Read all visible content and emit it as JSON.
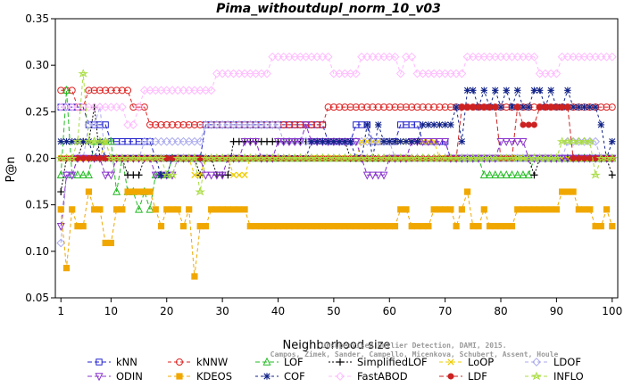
{
  "chart_data": {
    "type": "line",
    "title": "Pima_withoutdupl_norm_10_v03",
    "xlabel": "Neighborhood size",
    "ylabel": "P@n",
    "xlim": [
      0,
      101
    ],
    "ylim": [
      0.05,
      0.35
    ],
    "xticks": [
      1,
      10,
      20,
      30,
      40,
      50,
      60,
      70,
      80,
      90,
      100
    ],
    "xtick_labels": [
      "1",
      "10",
      "20",
      "30",
      "40",
      "50",
      "60",
      "70",
      "80",
      "90",
      "100"
    ],
    "yticks": [
      0.05,
      0.1,
      0.15,
      0.2,
      0.25,
      0.3,
      0.35
    ],
    "ytick_labels": [
      "0.05",
      "0.10",
      "0.15",
      "0.20",
      "0.25",
      "0.30",
      "0.35"
    ],
    "grid": false,
    "legend_position": "bottom",
    "credit": "Campos, Zimek, Sander, Campello, Micenkova, Schubert, Assent, Houle",
    "credit_title": "Unsupervised Outlier Detection, DAMI, 2015.",
    "series": [
      {
        "name": "kNN",
        "color": "#2222cc",
        "marker": "square",
        "keypoints": [
          [
            1,
            0.255
          ],
          [
            5,
            0.255
          ],
          [
            6,
            0.236
          ],
          [
            9,
            0.236
          ],
          [
            10,
            0.218
          ],
          [
            17,
            0.218
          ],
          [
            18,
            0.2
          ],
          [
            26,
            0.2
          ],
          [
            27,
            0.236
          ],
          [
            48,
            0.236
          ],
          [
            49,
            0.218
          ],
          [
            53,
            0.218
          ],
          [
            54,
            0.236
          ],
          [
            56,
            0.236
          ],
          [
            57,
            0.218
          ],
          [
            61,
            0.218
          ],
          [
            62,
            0.236
          ],
          [
            65,
            0.236
          ],
          [
            66,
            0.218
          ],
          [
            70,
            0.218
          ],
          [
            71,
            0.2
          ],
          [
            100,
            0.2
          ]
        ]
      },
      {
        "name": "kNNW",
        "color": "#dd2222",
        "marker": "circle",
        "keypoints": [
          [
            1,
            0.273
          ],
          [
            3,
            0.273
          ],
          [
            4,
            0.255
          ],
          [
            5,
            0.255
          ],
          [
            6,
            0.273
          ],
          [
            13,
            0.273
          ],
          [
            14,
            0.255
          ],
          [
            16,
            0.255
          ],
          [
            17,
            0.236
          ],
          [
            48,
            0.236
          ],
          [
            49,
            0.255
          ],
          [
            100,
            0.255
          ]
        ]
      },
      {
        "name": "LOF",
        "color": "#22bb22",
        "marker": "triangle",
        "keypoints": [
          [
            1,
            0.182
          ],
          [
            2,
            0.273
          ],
          [
            3,
            0.182
          ],
          [
            7,
            0.218
          ],
          [
            10,
            0.218
          ],
          [
            11,
            0.164
          ],
          [
            12,
            0.2
          ],
          [
            13,
            0.164
          ],
          [
            15,
            0.145
          ],
          [
            16,
            0.164
          ],
          [
            17,
            0.145
          ],
          [
            18,
            0.182
          ],
          [
            20,
            0.182
          ],
          [
            21,
            0.2
          ],
          [
            76,
            0.2
          ],
          [
            77,
            0.182
          ],
          [
            85,
            0.182
          ],
          [
            86,
            0.2
          ],
          [
            100,
            0.2
          ]
        ]
      },
      {
        "name": "SimplifiedLOF",
        "color": "#000000",
        "marker": "plus",
        "keypoints": [
          [
            1,
            0.164
          ],
          [
            2,
            0.2
          ],
          [
            4,
            0.2
          ],
          [
            5,
            0.218
          ],
          [
            6,
            0.218
          ],
          [
            7,
            0.255
          ],
          [
            8,
            0.2
          ],
          [
            12,
            0.2
          ],
          [
            13,
            0.182
          ],
          [
            15,
            0.182
          ],
          [
            16,
            0.2
          ],
          [
            25,
            0.2
          ],
          [
            26,
            0.182
          ],
          [
            27,
            0.2
          ],
          [
            29,
            0.182
          ],
          [
            31,
            0.182
          ],
          [
            32,
            0.218
          ],
          [
            52,
            0.218
          ],
          [
            53,
            0.2
          ],
          [
            85,
            0.2
          ],
          [
            86,
            0.182
          ],
          [
            87,
            0.2
          ],
          [
            99,
            0.2
          ],
          [
            100,
            0.182
          ]
        ]
      },
      {
        "name": "LoOP",
        "color": "#eecc00",
        "marker": "x",
        "keypoints": [
          [
            1,
            0.2
          ],
          [
            8,
            0.2
          ],
          [
            9,
            0.218
          ],
          [
            10,
            0.2
          ],
          [
            24,
            0.2
          ],
          [
            25,
            0.182
          ],
          [
            27,
            0.2
          ],
          [
            31,
            0.2
          ],
          [
            32,
            0.182
          ],
          [
            34,
            0.182
          ],
          [
            35,
            0.2
          ],
          [
            54,
            0.2
          ],
          [
            55,
            0.218
          ],
          [
            68,
            0.218
          ],
          [
            69,
            0.2
          ],
          [
            100,
            0.2
          ]
        ]
      },
      {
        "name": "LDOF",
        "color": "#aaaaee",
        "marker": "diamond",
        "keypoints": [
          [
            1,
            0.109
          ],
          [
            2,
            0.182
          ],
          [
            4,
            0.2
          ],
          [
            6,
            0.236
          ],
          [
            8,
            0.255
          ],
          [
            9,
            0.2
          ],
          [
            15,
            0.2
          ],
          [
            16,
            0.218
          ],
          [
            26,
            0.218
          ],
          [
            27,
            0.236
          ],
          [
            40,
            0.236
          ],
          [
            41,
            0.218
          ],
          [
            60,
            0.218
          ],
          [
            61,
            0.2
          ],
          [
            91,
            0.2
          ],
          [
            92,
            0.218
          ],
          [
            97,
            0.218
          ],
          [
            98,
            0.2
          ],
          [
            100,
            0.2
          ]
        ]
      },
      {
        "name": "ODIN",
        "color": "#8833cc",
        "marker": "triangle-down",
        "keypoints": [
          [
            1,
            0.127
          ],
          [
            2,
            0.182
          ],
          [
            4,
            0.2
          ],
          [
            8,
            0.2
          ],
          [
            9,
            0.182
          ],
          [
            11,
            0.2
          ],
          [
            17,
            0.2
          ],
          [
            18,
            0.182
          ],
          [
            20,
            0.182
          ],
          [
            22,
            0.2
          ],
          [
            26,
            0.2
          ],
          [
            27,
            0.182
          ],
          [
            30,
            0.182
          ],
          [
            31,
            0.2
          ],
          [
            33,
            0.2
          ],
          [
            34,
            0.218
          ],
          [
            36,
            0.218
          ],
          [
            37,
            0.2
          ],
          [
            40,
            0.218
          ],
          [
            43,
            0.218
          ],
          [
            45,
            0.236
          ],
          [
            46,
            0.218
          ],
          [
            55,
            0.2
          ],
          [
            56,
            0.182
          ],
          [
            58,
            0.182
          ],
          [
            60,
            0.2
          ],
          [
            64,
            0.218
          ],
          [
            71,
            0.2
          ],
          [
            76,
            0.2
          ],
          [
            80,
            0.218
          ],
          [
            83,
            0.218
          ],
          [
            85,
            0.2
          ],
          [
            100,
            0.2
          ]
        ]
      },
      {
        "name": "KDEOS",
        "color": "#f0a800",
        "marker": "filled-square",
        "keypoints": [
          [
            1,
            0.145
          ],
          [
            2,
            0.082
          ],
          [
            3,
            0.145
          ],
          [
            4,
            0.127
          ],
          [
            6,
            0.164
          ],
          [
            7,
            0.145
          ],
          [
            9,
            0.109
          ],
          [
            11,
            0.145
          ],
          [
            13,
            0.164
          ],
          [
            17,
            0.164
          ],
          [
            18,
            0.145
          ],
          [
            19,
            0.127
          ],
          [
            20,
            0.145
          ],
          [
            23,
            0.127
          ],
          [
            24,
            0.145
          ],
          [
            25,
            0.073
          ],
          [
            26,
            0.127
          ],
          [
            28,
            0.145
          ],
          [
            34,
            0.145
          ],
          [
            35,
            0.127
          ],
          [
            37,
            0.127
          ],
          [
            38,
            0.127
          ],
          [
            39,
            0.127
          ],
          [
            60,
            0.127
          ],
          [
            62,
            0.145
          ],
          [
            64,
            0.127
          ],
          [
            66,
            0.127
          ],
          [
            68,
            0.145
          ],
          [
            70,
            0.145
          ],
          [
            72,
            0.127
          ],
          [
            73,
            0.145
          ],
          [
            74,
            0.164
          ],
          [
            75,
            0.127
          ],
          [
            77,
            0.145
          ],
          [
            78,
            0.127
          ],
          [
            82,
            0.127
          ],
          [
            83,
            0.145
          ],
          [
            90,
            0.145
          ],
          [
            91,
            0.164
          ],
          [
            93,
            0.164
          ],
          [
            94,
            0.145
          ],
          [
            96,
            0.145
          ],
          [
            97,
            0.127
          ],
          [
            99,
            0.145
          ],
          [
            100,
            0.127
          ]
        ]
      },
      {
        "name": "COF",
        "color": "#112288",
        "marker": "asterisk",
        "keypoints": [
          [
            1,
            0.218
          ],
          [
            6,
            0.218
          ],
          [
            7,
            0.2
          ],
          [
            8,
            0.218
          ],
          [
            9,
            0.2
          ],
          [
            18,
            0.2
          ],
          [
            19,
            0.182
          ],
          [
            21,
            0.2
          ],
          [
            45,
            0.2
          ],
          [
            46,
            0.218
          ],
          [
            53,
            0.218
          ],
          [
            54,
            0.2
          ],
          [
            56,
            0.236
          ],
          [
            57,
            0.2
          ],
          [
            58,
            0.236
          ],
          [
            59,
            0.218
          ],
          [
            65,
            0.218
          ],
          [
            66,
            0.236
          ],
          [
            70,
            0.236
          ],
          [
            72,
            0.255
          ],
          [
            73,
            0.218
          ],
          [
            74,
            0.273
          ],
          [
            76,
            0.255
          ],
          [
            77,
            0.273
          ],
          [
            78,
            0.255
          ],
          [
            79,
            0.273
          ],
          [
            80,
            0.255
          ],
          [
            81,
            0.273
          ],
          [
            82,
            0.255
          ],
          [
            83,
            0.273
          ],
          [
            84,
            0.255
          ],
          [
            86,
            0.273
          ],
          [
            88,
            0.255
          ],
          [
            89,
            0.273
          ],
          [
            90,
            0.255
          ],
          [
            92,
            0.273
          ],
          [
            93,
            0.255
          ],
          [
            98,
            0.236
          ],
          [
            99,
            0.2
          ],
          [
            100,
            0.218
          ]
        ]
      },
      {
        "name": "FastABOD",
        "color": "#ffbbff",
        "marker": "diamond",
        "keypoints": [
          [
            1,
            0.255
          ],
          [
            12,
            0.255
          ],
          [
            13,
            0.236
          ],
          [
            15,
            0.255
          ],
          [
            16,
            0.273
          ],
          [
            28,
            0.273
          ],
          [
            29,
            0.291
          ],
          [
            38,
            0.291
          ],
          [
            39,
            0.309
          ],
          [
            49,
            0.309
          ],
          [
            50,
            0.291
          ],
          [
            54,
            0.291
          ],
          [
            55,
            0.309
          ],
          [
            61,
            0.309
          ],
          [
            62,
            0.291
          ],
          [
            63,
            0.309
          ],
          [
            65,
            0.291
          ],
          [
            73,
            0.291
          ],
          [
            74,
            0.309
          ],
          [
            86,
            0.309
          ],
          [
            87,
            0.291
          ],
          [
            90,
            0.291
          ],
          [
            91,
            0.309
          ],
          [
            100,
            0.309
          ]
        ]
      },
      {
        "name": "LDF",
        "color": "#cc2222",
        "marker": "filled-circle",
        "keypoints": [
          [
            1,
            0.2
          ],
          [
            72,
            0.2
          ],
          [
            73,
            0.255
          ],
          [
            79,
            0.255
          ],
          [
            80,
            0.2
          ],
          [
            82,
            0.2
          ],
          [
            83,
            0.255
          ],
          [
            84,
            0.236
          ],
          [
            86,
            0.236
          ],
          [
            87,
            0.255
          ],
          [
            92,
            0.255
          ],
          [
            93,
            0.2
          ],
          [
            100,
            0.2
          ]
        ]
      },
      {
        "name": "INFLO",
        "color": "#aadd44",
        "marker": "star",
        "keypoints": [
          [
            1,
            0.2
          ],
          [
            3,
            0.2
          ],
          [
            4,
            0.218
          ],
          [
            5,
            0.291
          ],
          [
            6,
            0.218
          ],
          [
            9,
            0.218
          ],
          [
            10,
            0.2
          ],
          [
            19,
            0.2
          ],
          [
            20,
            0.182
          ],
          [
            22,
            0.2
          ],
          [
            25,
            0.2
          ],
          [
            26,
            0.164
          ],
          [
            27,
            0.2
          ],
          [
            90,
            0.2
          ],
          [
            91,
            0.218
          ],
          [
            96,
            0.218
          ],
          [
            97,
            0.182
          ],
          [
            98,
            0.2
          ],
          [
            100,
            0.2
          ]
        ]
      }
    ]
  }
}
